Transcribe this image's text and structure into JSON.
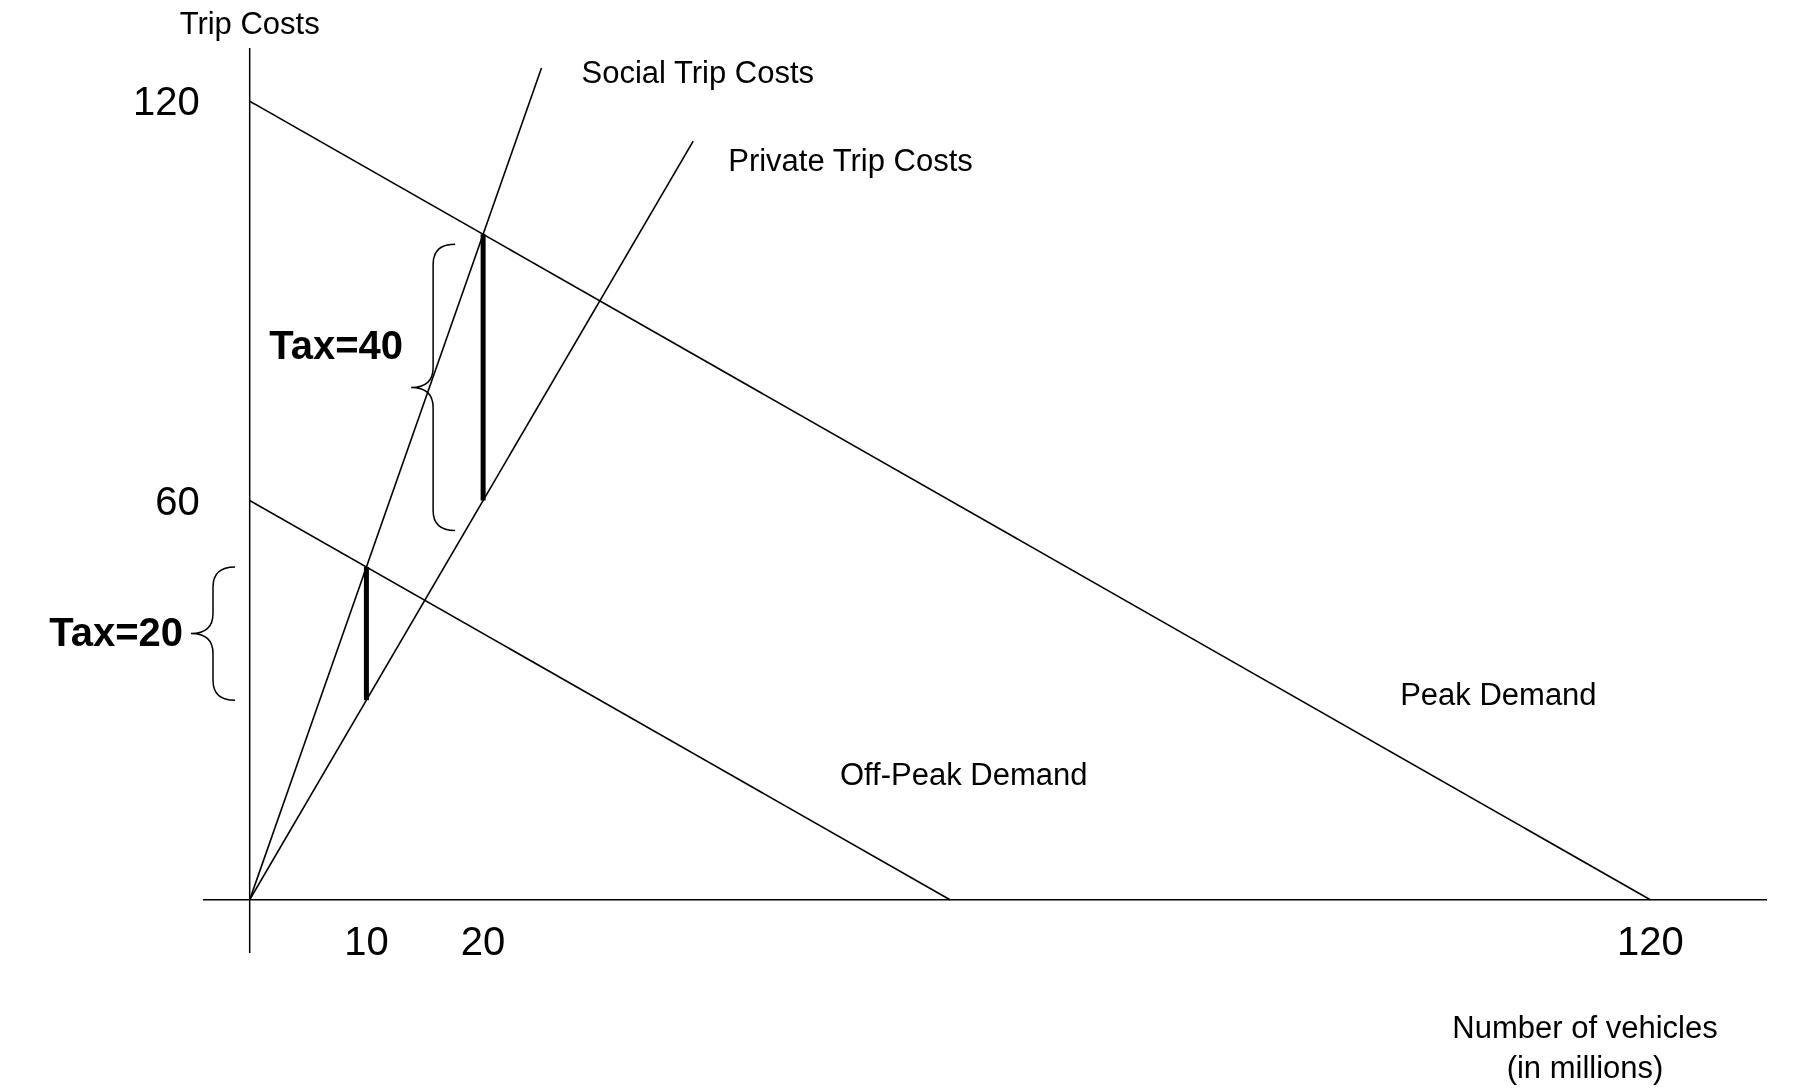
{
  "chart_data": {
    "type": "line",
    "ylabel": "Trip Costs",
    "xlabel": "Number of vehicles\n(in millions)",
    "xlim": [
      -4,
      130
    ],
    "ylim": [
      -8,
      128
    ],
    "xticks": [
      10,
      20,
      120
    ],
    "yticks": [
      60,
      120
    ],
    "series": [
      {
        "name": "Social Trip Costs",
        "color": "#000000",
        "x": [
          0,
          25
        ],
        "values": [
          0,
          125
        ]
      },
      {
        "name": "Private Trip Costs",
        "color": "#000000",
        "x": [
          0,
          38
        ],
        "values": [
          0,
          114
        ]
      },
      {
        "name": "Peak Demand",
        "color": "#000000",
        "x": [
          0,
          120
        ],
        "values": [
          120,
          0
        ]
      },
      {
        "name": "Off-Peak Demand",
        "color": "#000000",
        "x": [
          0,
          60
        ],
        "values": [
          60,
          0
        ]
      },
      {
        "type": "bar",
        "color": "#000000",
        "x": [
          10,
          20
        ],
        "base": [
          30,
          60
        ],
        "values": [
          20,
          40
        ]
      }
    ],
    "annotations": [
      "Tax=20",
      "Tax=40"
    ]
  }
}
